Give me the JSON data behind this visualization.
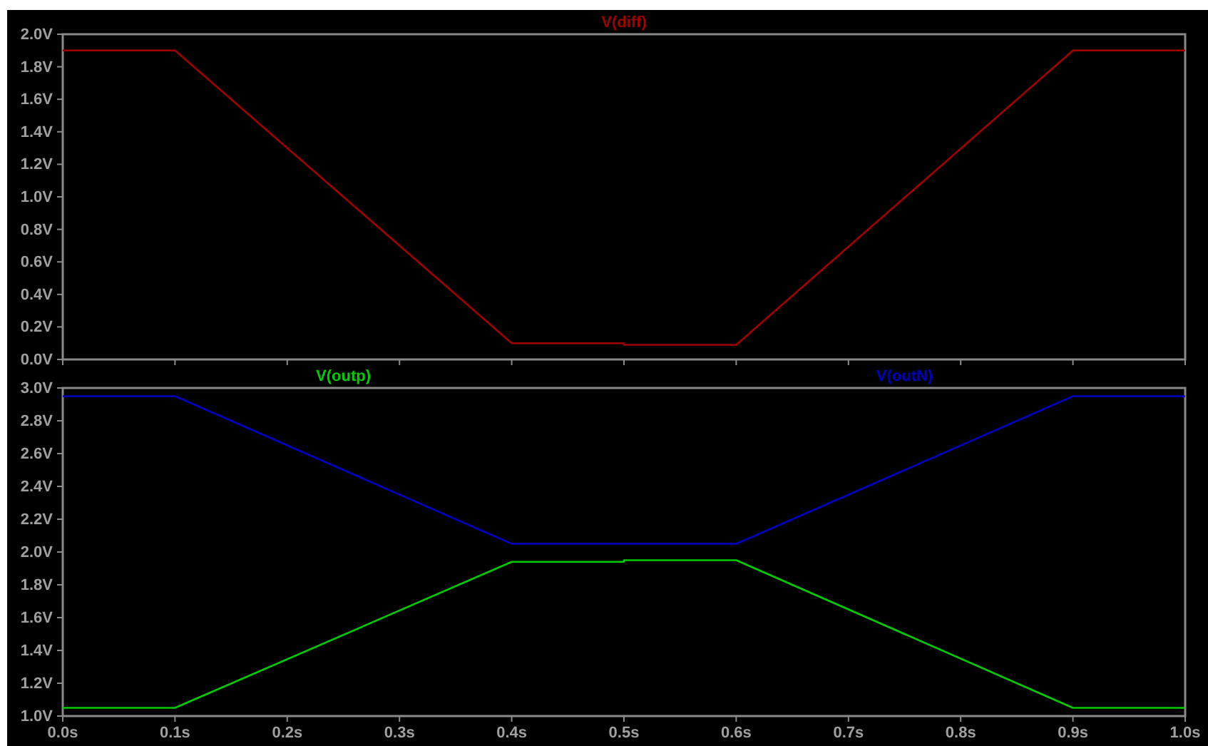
{
  "chart_data": [
    {
      "type": "line",
      "legend": "top",
      "tick_labels": "y",
      "line_style": "solid",
      "xlim": [
        0,
        1
      ],
      "ylim": [
        0,
        2
      ],
      "xticks": [
        {
          "value": 0,
          "label": null
        },
        {
          "value": 0.1,
          "label": null
        },
        {
          "value": 0.2,
          "label": null
        },
        {
          "value": 0.3,
          "label": null
        },
        {
          "value": 0.4,
          "label": null
        },
        {
          "value": 0.5,
          "label": null
        },
        {
          "value": 0.6,
          "label": null
        },
        {
          "value": 0.7,
          "label": null
        },
        {
          "value": 0.8,
          "label": null
        },
        {
          "value": 0.9,
          "label": null
        },
        {
          "value": 1,
          "label": null
        }
      ],
      "yticks": [
        {
          "value": 0,
          "label": "0.0V"
        },
        {
          "value": 0.2,
          "label": "0.2V"
        },
        {
          "value": 0.4,
          "label": "0.4V"
        },
        {
          "value": 0.6,
          "label": "0.6V"
        },
        {
          "value": 0.8,
          "label": "0.8V"
        },
        {
          "value": 1,
          "label": "1.0V"
        },
        {
          "value": 1.2,
          "label": "1.2V"
        },
        {
          "value": 1.4,
          "label": "1.4V"
        },
        {
          "value": 1.6,
          "label": "1.6V"
        },
        {
          "value": 1.8,
          "label": "1.8V"
        },
        {
          "value": 2,
          "label": "2.0V"
        }
      ],
      "series": [
        {
          "name": "V(diff)",
          "color": "#a00000",
          "x": [
            0,
            0.1,
            0.4,
            0.5,
            0.5,
            0.6,
            0.9,
            1
          ],
          "values": [
            1.9,
            1.9,
            0.1,
            0.1,
            0.09,
            0.09,
            1.9,
            1.9
          ]
        }
      ]
    },
    {
      "type": "line",
      "legend": "top",
      "line_style": "solid",
      "xlim": [
        0,
        1
      ],
      "ylim": [
        1,
        3
      ],
      "xticks": [
        {
          "value": 0,
          "label": "0.0s"
        },
        {
          "value": 0.1,
          "label": "0.1s"
        },
        {
          "value": 0.2,
          "label": "0.2s"
        },
        {
          "value": 0.3,
          "label": "0.3s"
        },
        {
          "value": 0.4,
          "label": "0.4s"
        },
        {
          "value": 0.5,
          "label": "0.5s"
        },
        {
          "value": 0.6,
          "label": "0.6s"
        },
        {
          "value": 0.7,
          "label": "0.7s"
        },
        {
          "value": 0.8,
          "label": "0.8s"
        },
        {
          "value": 0.9,
          "label": "0.9s"
        },
        {
          "value": 1,
          "label": "1.0s"
        }
      ],
      "yticks": [
        {
          "value": 1,
          "label": "1.0V"
        },
        {
          "value": 1.2,
          "label": "1.2V"
        },
        {
          "value": 1.4,
          "label": "1.4V"
        },
        {
          "value": 1.6,
          "label": "1.6V"
        },
        {
          "value": 1.8,
          "label": "1.8V"
        },
        {
          "value": 2,
          "label": "2.0V"
        },
        {
          "value": 2.2,
          "label": "2.2V"
        },
        {
          "value": 2.4,
          "label": "2.4V"
        },
        {
          "value": 2.6,
          "label": "2.6V"
        },
        {
          "value": 2.8,
          "label": "2.8V"
        },
        {
          "value": 3,
          "label": "3.0V"
        }
      ],
      "series": [
        {
          "name": "V(outp)",
          "color": "#00cc00",
          "x": [
            0,
            0.1,
            0.4,
            0.5,
            0.5,
            0.6,
            0.9,
            1
          ],
          "values": [
            1.05,
            1.05,
            1.94,
            1.94,
            1.95,
            1.95,
            1.05,
            1.05
          ]
        },
        {
          "name": "V(outN)",
          "color": "#0000c0",
          "x": [
            0,
            0.1,
            0.4,
            0.6,
            0.9,
            1
          ],
          "values": [
            2.95,
            2.95,
            2.05,
            2.05,
            2.95,
            2.95
          ]
        }
      ]
    }
  ]
}
